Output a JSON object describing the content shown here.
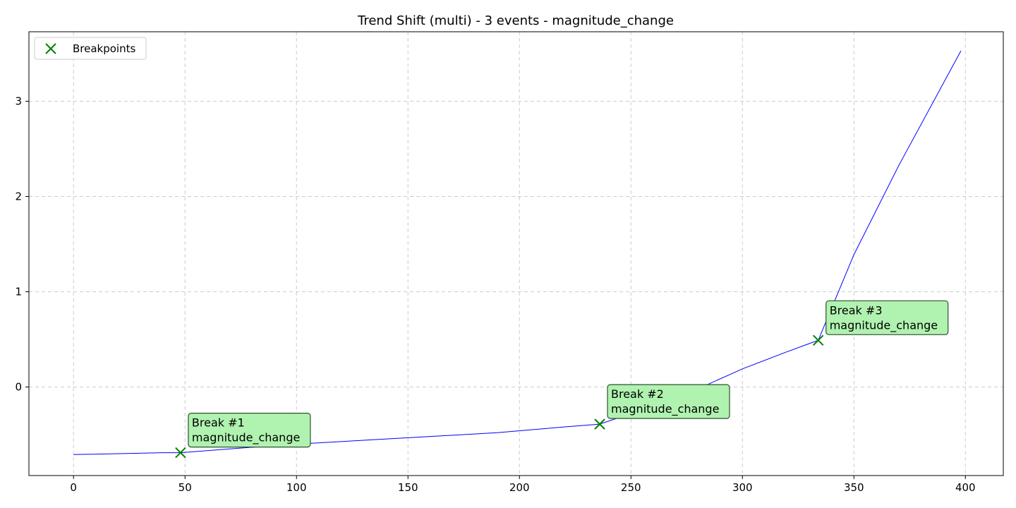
{
  "chart_data": {
    "type": "line",
    "title": "Trend Shift (multi) - 3 events - magnitude_change",
    "xlabel": "",
    "ylabel": "",
    "xlim": [
      -20,
      417
    ],
    "ylim": [
      -0.93,
      3.73
    ],
    "x_ticks": [
      0,
      50,
      100,
      150,
      200,
      250,
      300,
      350,
      400
    ],
    "y_ticks": [
      0,
      1,
      2,
      3
    ],
    "grid": true,
    "legend_position": "top-left",
    "colors": {
      "line": "#0000ff",
      "marker": "#008000",
      "annotation_fill": "#b0f2b0",
      "annotation_border": "#2f4f2f",
      "grid": "#cccccc"
    },
    "series": [
      {
        "x": [
          0,
          20,
          40,
          48,
          70,
          100,
          130,
          160,
          190,
          220,
          236,
          260,
          280,
          300,
          320,
          334,
          350,
          370,
          398
        ],
        "values": [
          -0.71,
          -0.7,
          -0.69,
          -0.69,
          -0.65,
          -0.6,
          -0.56,
          -0.52,
          -0.48,
          -0.42,
          -0.39,
          -0.2,
          -0.02,
          0.19,
          0.37,
          0.49,
          1.39,
          2.32,
          3.53
        ]
      }
    ],
    "legend": [
      {
        "label": "Breakpoints",
        "marker": "x"
      }
    ],
    "breakpoints": [
      {
        "x": 48,
        "y": -0.69,
        "label_line1": "Break #1",
        "label_line2": "magnitude_change"
      },
      {
        "x": 236,
        "y": -0.39,
        "label_line1": "Break #2",
        "label_line2": "magnitude_change"
      },
      {
        "x": 334,
        "y": 0.49,
        "label_line1": "Break #3",
        "label_line2": "magnitude_change"
      }
    ]
  }
}
